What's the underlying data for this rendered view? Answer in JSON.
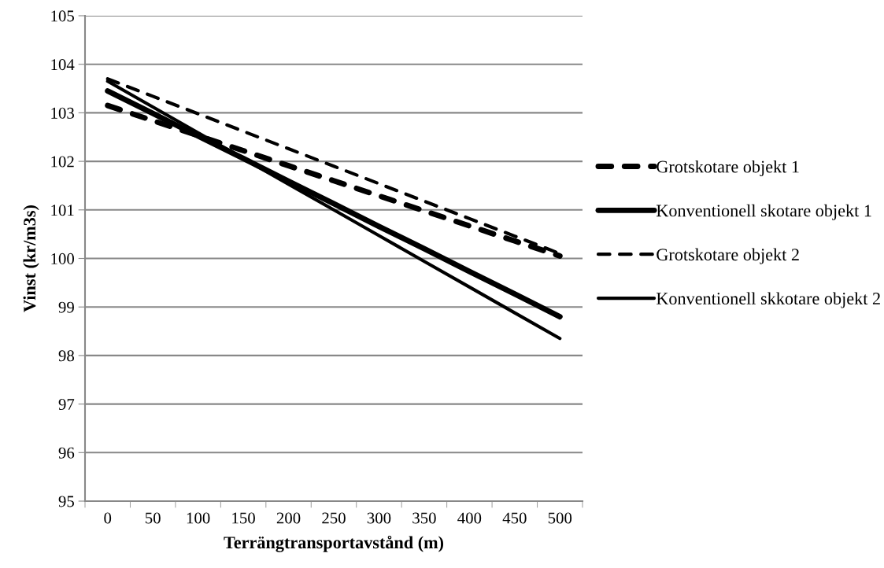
{
  "chart_data": {
    "type": "line",
    "xlabel": "Terrängtransportavstånd (m)",
    "ylabel": "Vinst (kr/m3s)",
    "categories": [
      "0",
      "50",
      "100",
      "150",
      "200",
      "250",
      "300",
      "350",
      "400",
      "450",
      "500"
    ],
    "series": [
      {
        "name": "Grotskotare objekt 1",
        "color": "#000000",
        "line_style": "dashed",
        "values": [
          103.15,
          102.84,
          102.53,
          102.22,
          101.91,
          101.6,
          101.29,
          100.98,
          100.67,
          100.36,
          100.05
        ]
      },
      {
        "name": "Konventionell skotare objekt 1",
        "color": "#000000",
        "line_style": "solid",
        "values": [
          103.45,
          102.99,
          102.52,
          102.06,
          101.59,
          101.13,
          100.66,
          100.2,
          99.73,
          99.27,
          98.8
        ]
      },
      {
        "name": "Grotskotare objekt 2",
        "color": "#000000",
        "line_style": "dashed",
        "values": [
          103.7,
          103.34,
          102.98,
          102.62,
          102.26,
          101.9,
          101.54,
          101.18,
          100.82,
          100.46,
          100.1
        ]
      },
      {
        "name": "Konventionell skkotare objekt 2",
        "color": "#000000",
        "line_style": "solid",
        "values": [
          103.65,
          103.12,
          102.59,
          102.06,
          101.53,
          101.0,
          100.47,
          99.94,
          99.41,
          98.88,
          98.35
        ]
      }
    ],
    "ylim": [
      95,
      105
    ],
    "yticks": [
      95,
      96,
      97,
      98,
      99,
      100,
      101,
      102,
      103,
      104,
      105
    ],
    "grid": "y",
    "legend": "right",
    "marker": "none"
  }
}
